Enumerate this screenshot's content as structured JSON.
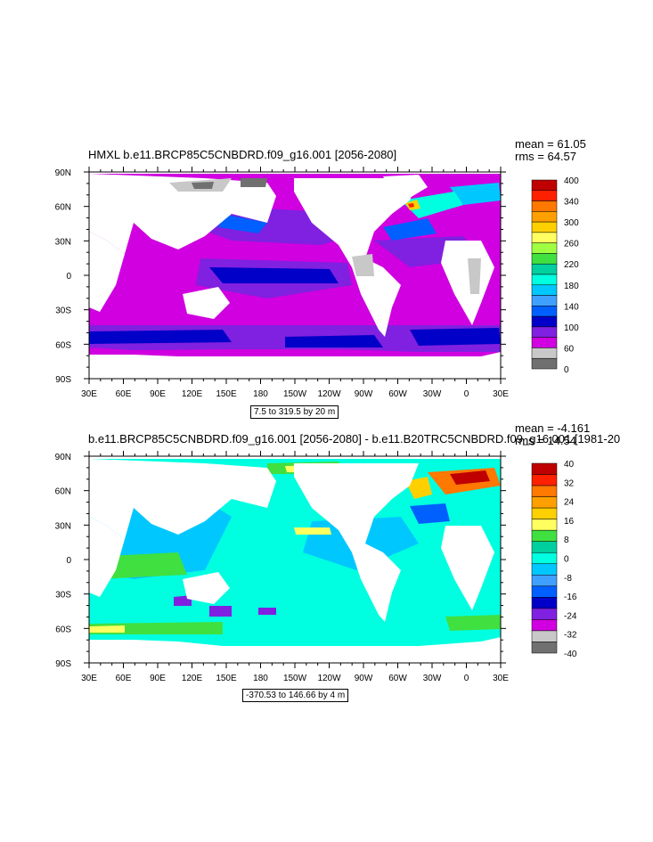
{
  "panels": [
    {
      "title": "HMXL b.e11.BRCP85C5CNBDRD.f09_g16.001 [2056-2080]",
      "mean": "mean = 61.05",
      "rms": "rms = 64.57",
      "range_text": "7.5 to 319.5 by 20 m",
      "colorbar": {
        "labels": [
          "400",
          "340",
          "300",
          "260",
          "220",
          "180",
          "140",
          "100",
          "60",
          "0"
        ],
        "colors": [
          "#c00000",
          "#ff2000",
          "#ff7800",
          "#ffa000",
          "#ffd000",
          "#ffff60",
          "#a0ff40",
          "#40e040",
          "#00d0a0",
          "#00ffe0",
          "#00c8ff",
          "#40a0ff",
          "#0060ff",
          "#0000c8",
          "#8020e0",
          "#d000e0",
          "#c8c8c8",
          "#707070"
        ]
      }
    },
    {
      "title": "b.e11.BRCP85C5CNBDRD.f09_g16.001 [2056-2080] - b.e11.B20TRC5CNBDRD.f09_g16.001 [1981-20",
      "mean": "mean = -4.161",
      "rms": "rms = 14.54",
      "range_text": "-370.53 to 146.66 by 4 m",
      "colorbar": {
        "labels": [
          "40",
          "32",
          "24",
          "16",
          "8",
          "0",
          "-8",
          "-16",
          "-24",
          "-32",
          "-40"
        ],
        "colors": [
          "#c00000",
          "#ff2000",
          "#ff7800",
          "#ffa000",
          "#ffd000",
          "#ffff60",
          "#40e040",
          "#00d0a0",
          "#00ffe0",
          "#00c8ff",
          "#40a0ff",
          "#0060ff",
          "#0000c8",
          "#8020e0",
          "#d000e0",
          "#c8c8c8",
          "#707070"
        ]
      }
    }
  ],
  "axes": {
    "lon_labels": [
      "30E",
      "60E",
      "90E",
      "120E",
      "150E",
      "180",
      "150W",
      "120W",
      "90W",
      "60W",
      "30W",
      "0",
      "30E"
    ],
    "lat_labels": [
      "90N",
      "60N",
      "30N",
      "0",
      "30S",
      "60S",
      "90S"
    ]
  }
}
